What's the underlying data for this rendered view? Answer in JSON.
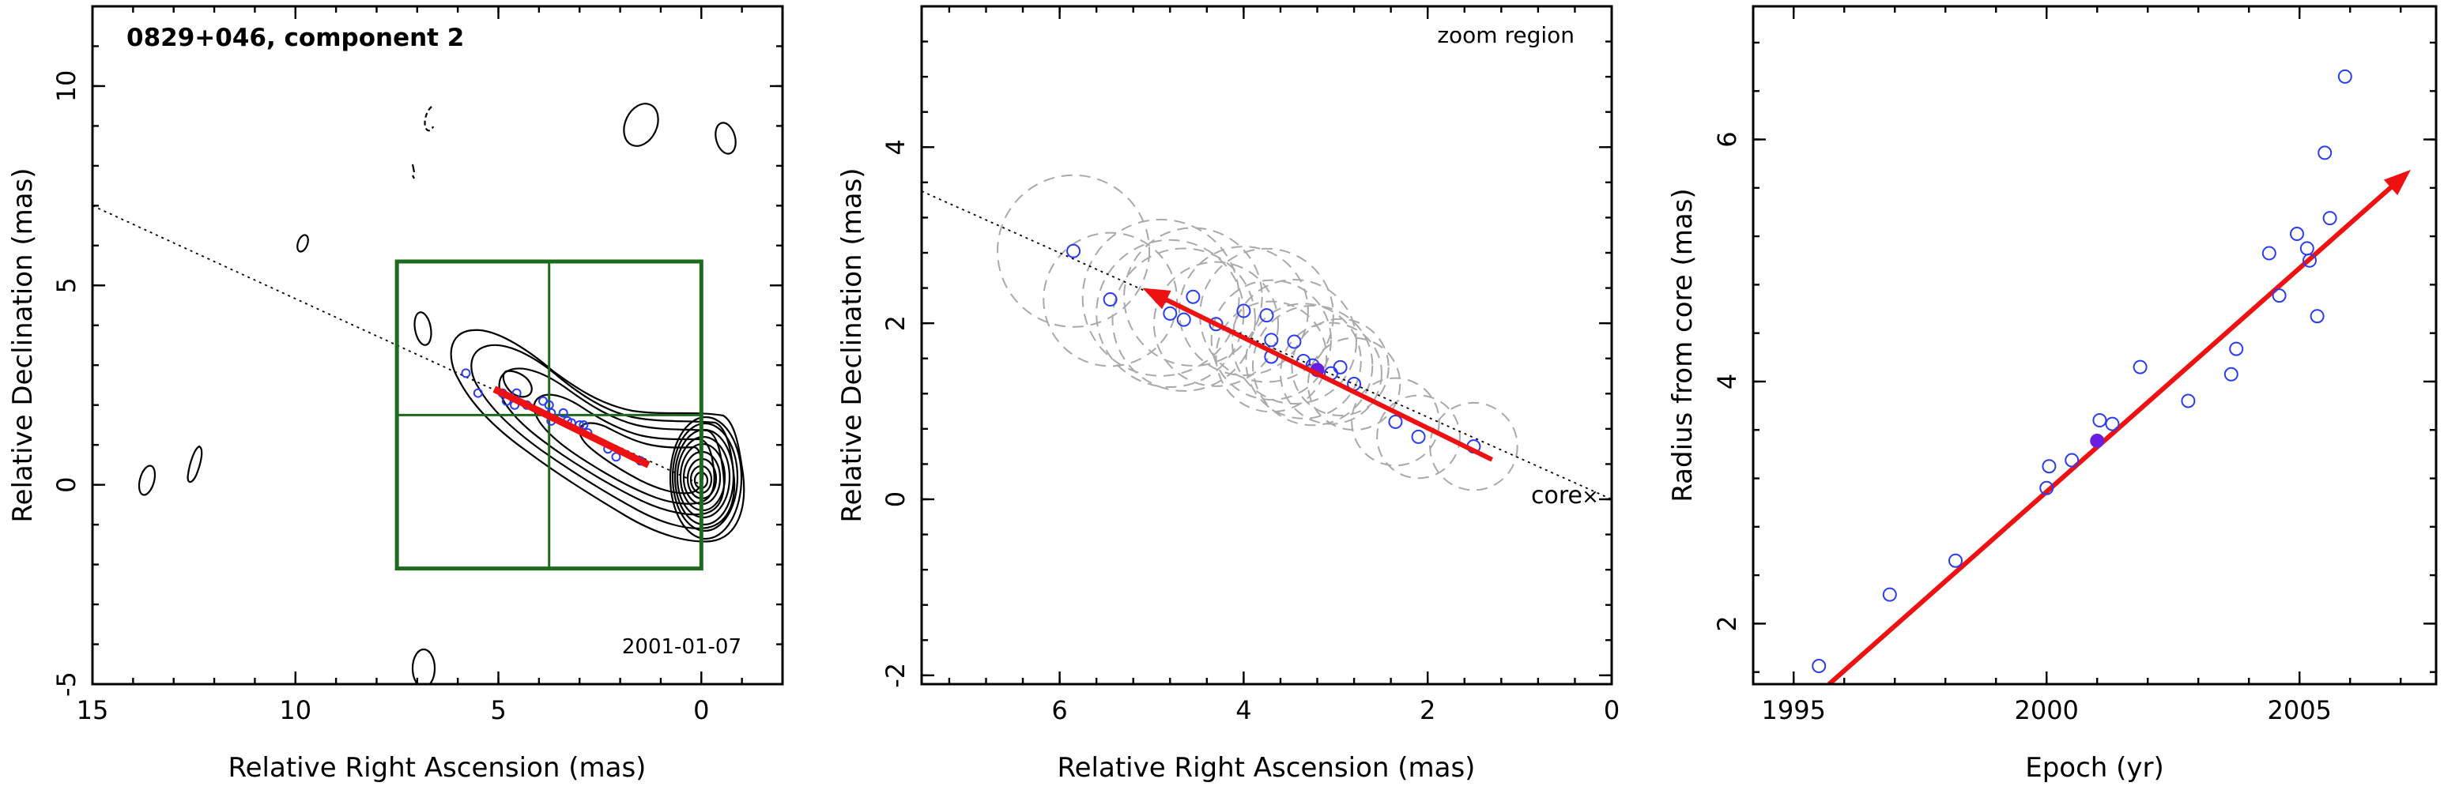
{
  "chart_data": [
    {
      "type": "contour",
      "title": "0829+046, component 2",
      "annotation": "2001-01-07",
      "xlabel": "Relative Right Ascension (mas)",
      "ylabel": "Relative Declination (mas)",
      "xlim": [
        15,
        -2
      ],
      "ylim": [
        -5,
        12
      ],
      "xticks": [
        15,
        10,
        5,
        0
      ],
      "yticks": [
        -5,
        0,
        5,
        10
      ],
      "component_positions": [
        [
          5.8,
          2.8
        ],
        [
          5.5,
          2.3
        ],
        [
          4.9,
          2.3
        ],
        [
          4.8,
          2.1
        ],
        [
          4.6,
          2.0
        ],
        [
          4.55,
          2.3
        ],
        [
          4.3,
          2.0
        ],
        [
          3.9,
          2.1
        ],
        [
          3.75,
          2.0
        ],
        [
          3.7,
          1.8
        ],
        [
          3.7,
          1.6
        ],
        [
          3.4,
          1.8
        ],
        [
          3.3,
          1.6
        ],
        [
          3.2,
          1.55
        ],
        [
          3.0,
          1.5
        ],
        [
          2.9,
          1.5
        ],
        [
          2.8,
          1.3
        ],
        [
          2.3,
          0.9
        ],
        [
          2.1,
          0.7
        ],
        [
          1.5,
          0.6
        ]
      ],
      "motion_vector": {
        "from": [
          1.3,
          0.5
        ],
        "to": [
          5.1,
          2.4
        ]
      },
      "jet_axis": {
        "from": [
          15,
          7.0
        ],
        "to": [
          0,
          0
        ]
      },
      "zoom_region": {
        "x": [
          7.5,
          0
        ],
        "y": [
          -2.1,
          5.6
        ]
      }
    },
    {
      "type": "scatter",
      "annotation": "zoom region",
      "core_label": "core",
      "xlabel": "Relative Right Ascension (mas)",
      "ylabel": "Relative Declination (mas)",
      "xlim": [
        7.5,
        0
      ],
      "ylim": [
        -2.1,
        5.6
      ],
      "xticks": [
        6,
        4,
        2,
        0
      ],
      "yticks": [
        -2,
        0,
        2,
        4
      ],
      "points": [
        [
          5.85,
          2.82
        ],
        [
          5.45,
          2.27
        ],
        [
          4.9,
          2.29
        ],
        [
          4.8,
          2.11
        ],
        [
          4.65,
          2.04
        ],
        [
          4.55,
          2.3
        ],
        [
          4.3,
          1.99
        ],
        [
          4.0,
          2.14
        ],
        [
          3.75,
          2.09
        ],
        [
          3.7,
          1.81
        ],
        [
          3.7,
          1.62
        ],
        [
          3.45,
          1.79
        ],
        [
          3.35,
          1.57
        ],
        [
          3.25,
          1.52
        ],
        [
          3.05,
          1.43
        ],
        [
          2.95,
          1.5
        ],
        [
          2.8,
          1.31
        ],
        [
          2.35,
          0.88
        ],
        [
          2.1,
          0.71
        ],
        [
          1.5,
          0.6
        ]
      ],
      "highlighted_point": [
        3.2,
        1.47
      ],
      "beam_diameters_mas": [
        1.65,
        1.45,
        1.7,
        1.6,
        1.55,
        1.5,
        1.35,
        1.4,
        1.45,
        1.3,
        1.2,
        1.35,
        1.25,
        1.3,
        1.1,
        1.05,
        1.0,
        0.95,
        0.9,
        0.95
      ],
      "motion_vector": {
        "from": [
          1.3,
          0.45
        ],
        "to": [
          5.1,
          2.4
        ]
      }
    },
    {
      "type": "scatter",
      "xlabel": "Epoch (yr)",
      "ylabel": "Radius from core (mas)",
      "xlim": [
        1994.2,
        2007.7
      ],
      "ylim": [
        1.5,
        7.1
      ],
      "xticks": [
        1995,
        2000,
        2005
      ],
      "yticks": [
        2,
        4,
        6
      ],
      "points": [
        [
          1995.5,
          1.65
        ],
        [
          1996.9,
          2.24
        ],
        [
          1998.2,
          2.52
        ],
        [
          2000.0,
          3.12
        ],
        [
          2000.05,
          3.3
        ],
        [
          2000.5,
          3.35
        ],
        [
          2001.05,
          3.68
        ],
        [
          2001.3,
          3.65
        ],
        [
          2001.85,
          4.12
        ],
        [
          2002.8,
          3.84
        ],
        [
          2003.65,
          4.06
        ],
        [
          2003.75,
          4.27
        ],
        [
          2004.4,
          5.06
        ],
        [
          2004.6,
          4.71
        ],
        [
          2004.95,
          5.22
        ],
        [
          2005.15,
          5.1
        ],
        [
          2005.2,
          5.0
        ],
        [
          2005.35,
          4.54
        ],
        [
          2005.5,
          5.89
        ],
        [
          2005.6,
          5.35
        ],
        [
          2005.9,
          6.52
        ]
      ],
      "highlighted_point": [
        2001.0,
        3.51
      ],
      "trend_vector": {
        "from": [
          1995.7,
          1.5
        ],
        "to": [
          2007.2,
          5.75
        ]
      }
    }
  ]
}
